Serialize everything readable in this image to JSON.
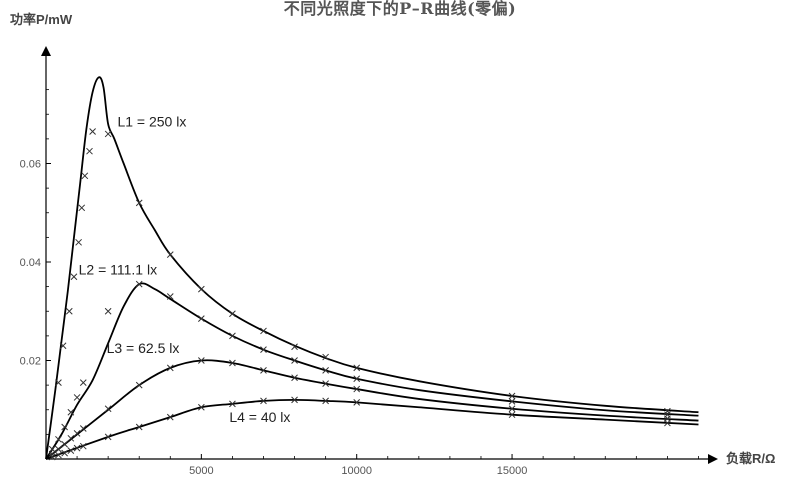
{
  "chart_data": {
    "type": "line",
    "title": "不同光照度下的P–R曲线(零偏)",
    "xlabel": "负载R/Ω",
    "ylabel": "功率P/mW",
    "xlim": [
      0,
      21000
    ],
    "ylim": [
      0,
      0.08
    ],
    "xticks": [
      5000,
      10000,
      15000
    ],
    "xtick_labels": [
      "5000",
      "10000",
      "15000"
    ],
    "yticks": [
      0.02,
      0.04,
      0.06
    ],
    "ytick_labels": [
      "0.02",
      "0.04",
      "0.06"
    ],
    "grid": false,
    "legend": "none",
    "series": [
      {
        "name": "L1 = 250 lx",
        "label_anchor": [
          2300,
          0.0675
        ],
        "curve": [
          [
            0,
            0
          ],
          [
            300,
            0.014
          ],
          [
            500,
            0.024
          ],
          [
            700,
            0.034
          ],
          [
            900,
            0.045
          ],
          [
            1100,
            0.056
          ],
          [
            1300,
            0.067
          ],
          [
            1500,
            0.0745
          ],
          [
            1700,
            0.0775
          ],
          [
            1850,
            0.0755
          ],
          [
            2000,
            0.068
          ],
          [
            2200,
            0.065
          ],
          [
            2500,
            0.06
          ],
          [
            3000,
            0.052
          ],
          [
            3500,
            0.0465
          ],
          [
            4000,
            0.0415
          ],
          [
            5000,
            0.0345
          ],
          [
            6000,
            0.0295
          ],
          [
            7000,
            0.026
          ],
          [
            8000,
            0.023
          ],
          [
            9000,
            0.0205
          ],
          [
            10000,
            0.0185
          ],
          [
            12000,
            0.0158
          ],
          [
            15000,
            0.0128
          ],
          [
            18000,
            0.0108
          ],
          [
            21000,
            0.0095
          ]
        ],
        "markers": [
          [
            400,
            0.0155
          ],
          [
            550,
            0.023
          ],
          [
            750,
            0.03
          ],
          [
            900,
            0.037
          ],
          [
            1050,
            0.044
          ],
          [
            1150,
            0.051
          ],
          [
            1250,
            0.0575
          ],
          [
            1400,
            0.0625
          ],
          [
            1500,
            0.0665
          ],
          [
            2000,
            0.066
          ],
          [
            3000,
            0.052
          ],
          [
            4000,
            0.0415
          ],
          [
            5000,
            0.0345
          ],
          [
            6000,
            0.0295
          ],
          [
            7000,
            0.026
          ],
          [
            8000,
            0.0228
          ],
          [
            9000,
            0.0207
          ],
          [
            10000,
            0.0185
          ],
          [
            15000,
            0.0128
          ],
          [
            20000,
            0.0097
          ]
        ]
      },
      {
        "name": "L2 = 111.1 lx",
        "label_anchor": [
          1050,
          0.0375
        ],
        "curve": [
          [
            0,
            0
          ],
          [
            500,
            0.005
          ],
          [
            1000,
            0.011
          ],
          [
            1500,
            0.016
          ],
          [
            2000,
            0.0235
          ],
          [
            2500,
            0.031
          ],
          [
            3000,
            0.0355
          ],
          [
            3500,
            0.0345
          ],
          [
            4000,
            0.0325
          ],
          [
            5000,
            0.0285
          ],
          [
            6000,
            0.025
          ],
          [
            7000,
            0.0222
          ],
          [
            8000,
            0.02
          ],
          [
            9000,
            0.018
          ],
          [
            10000,
            0.0163
          ],
          [
            12000,
            0.014
          ],
          [
            15000,
            0.0117
          ],
          [
            18000,
            0.0099
          ],
          [
            21000,
            0.0088
          ]
        ],
        "markers": [
          [
            200,
            0.002
          ],
          [
            400,
            0.004
          ],
          [
            600,
            0.0065
          ],
          [
            800,
            0.0095
          ],
          [
            1000,
            0.0125
          ],
          [
            1200,
            0.0155
          ],
          [
            2000,
            0.03
          ],
          [
            3000,
            0.0355
          ],
          [
            4000,
            0.033
          ],
          [
            5000,
            0.0285
          ],
          [
            6000,
            0.025
          ],
          [
            7000,
            0.0222
          ],
          [
            8000,
            0.02
          ],
          [
            9000,
            0.018
          ],
          [
            10000,
            0.0163
          ],
          [
            15000,
            0.0117
          ],
          [
            20000,
            0.009
          ]
        ]
      },
      {
        "name": "L3 = 62.5 lx",
        "label_anchor": [
          1950,
          0.0215
        ],
        "curve": [
          [
            0,
            0
          ],
          [
            1000,
            0.005
          ],
          [
            2000,
            0.01
          ],
          [
            3000,
            0.015
          ],
          [
            4000,
            0.0185
          ],
          [
            5000,
            0.02
          ],
          [
            6000,
            0.0195
          ],
          [
            7000,
            0.018
          ],
          [
            8000,
            0.0165
          ],
          [
            9000,
            0.0153
          ],
          [
            10000,
            0.0142
          ],
          [
            12000,
            0.0122
          ],
          [
            15000,
            0.0102
          ],
          [
            18000,
            0.0088
          ],
          [
            21000,
            0.0078
          ]
        ],
        "markers": [
          [
            200,
            0.001
          ],
          [
            400,
            0.002
          ],
          [
            600,
            0.003
          ],
          [
            800,
            0.0042
          ],
          [
            1000,
            0.0052
          ],
          [
            1200,
            0.0062
          ],
          [
            2000,
            0.0102
          ],
          [
            3000,
            0.015
          ],
          [
            4000,
            0.0185
          ],
          [
            5000,
            0.02
          ],
          [
            6000,
            0.0195
          ],
          [
            7000,
            0.018
          ],
          [
            8000,
            0.0165
          ],
          [
            9000,
            0.0153
          ],
          [
            10000,
            0.0142
          ],
          [
            15000,
            0.0102
          ],
          [
            20000,
            0.0082
          ]
        ]
      },
      {
        "name": "L4 = 40 lx",
        "label_anchor": [
          5900,
          0.0075
        ],
        "curve": [
          [
            0,
            0
          ],
          [
            2000,
            0.0045
          ],
          [
            3000,
            0.0065
          ],
          [
            4000,
            0.0085
          ],
          [
            5000,
            0.0105
          ],
          [
            6000,
            0.0112
          ],
          [
            7000,
            0.0118
          ],
          [
            8000,
            0.012
          ],
          [
            9000,
            0.0118
          ],
          [
            10000,
            0.0115
          ],
          [
            12000,
            0.0105
          ],
          [
            15000,
            0.009
          ],
          [
            18000,
            0.008
          ],
          [
            21000,
            0.007
          ]
        ],
        "markers": [
          [
            200,
            0.0004
          ],
          [
            400,
            0.0008
          ],
          [
            600,
            0.0012
          ],
          [
            800,
            0.0017
          ],
          [
            1000,
            0.0022
          ],
          [
            1200,
            0.0026
          ],
          [
            2000,
            0.0045
          ],
          [
            3000,
            0.0065
          ],
          [
            4000,
            0.0085
          ],
          [
            5000,
            0.0105
          ],
          [
            6000,
            0.0112
          ],
          [
            7000,
            0.0118
          ],
          [
            8000,
            0.012
          ],
          [
            9000,
            0.0118
          ],
          [
            10000,
            0.0115
          ],
          [
            15000,
            0.009
          ],
          [
            20000,
            0.0073
          ]
        ]
      }
    ]
  }
}
